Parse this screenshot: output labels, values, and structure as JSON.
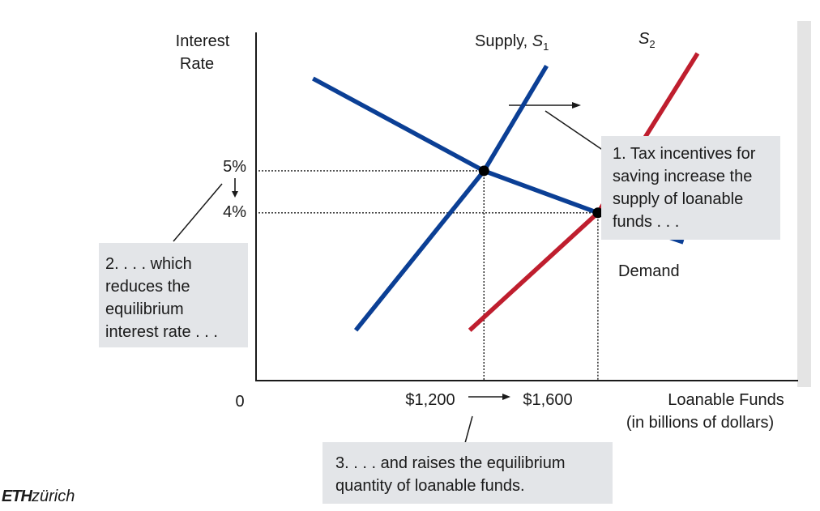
{
  "chart_data": {
    "type": "line",
    "ylabel": "Interest Rate",
    "ylabel_lines": [
      "Interest",
      "Rate"
    ],
    "xlabel_lines": [
      "Loanable Funds",
      "(in billions of dollars)"
    ],
    "origin_label": "0",
    "x_ticks": [
      "$1,200",
      "$1,600"
    ],
    "y_ticks": [
      "5%",
      "4%"
    ],
    "series": [
      {
        "name": "Demand",
        "label": "Demand",
        "color": "#0b3f95",
        "points": [
          [
            600,
            7.2
          ],
          [
            1200,
            5
          ],
          [
            1600,
            4
          ],
          [
            1900,
            3.3
          ]
        ]
      },
      {
        "name": "Supply, S1",
        "label_main": "Supply, ",
        "label_sym": "S",
        "label_sub": "1",
        "color": "#0b3f95",
        "points": [
          [
            750,
            1.2
          ],
          [
            1200,
            5
          ],
          [
            1420,
            7.5
          ]
        ]
      },
      {
        "name": "S2",
        "label_main": "",
        "label_sym": "S",
        "label_sub": "2",
        "color": "#bf1e2e",
        "points": [
          [
            1150,
            1.2
          ],
          [
            1600,
            4
          ],
          [
            1950,
            7.8
          ]
        ]
      }
    ],
    "equilibria": [
      {
        "x": 1200,
        "y": 5
      },
      {
        "x": 1600,
        "y": 4
      }
    ],
    "xlim": [
      400,
      2300
    ],
    "ylim": [
      0,
      8.3
    ],
    "grid": false
  },
  "annotations": {
    "step1": "1. Tax incentives for\nsaving increase the\nsupply of loanable\nfunds . . .",
    "step2": "2. . . . which\nreduces the\nequilibrium\ninterest rate . . .",
    "step3": "3. . . . and raises the equilibrium\nquantity of loanable funds."
  },
  "logo": {
    "bold": "ETH",
    "rest": "zürich"
  }
}
